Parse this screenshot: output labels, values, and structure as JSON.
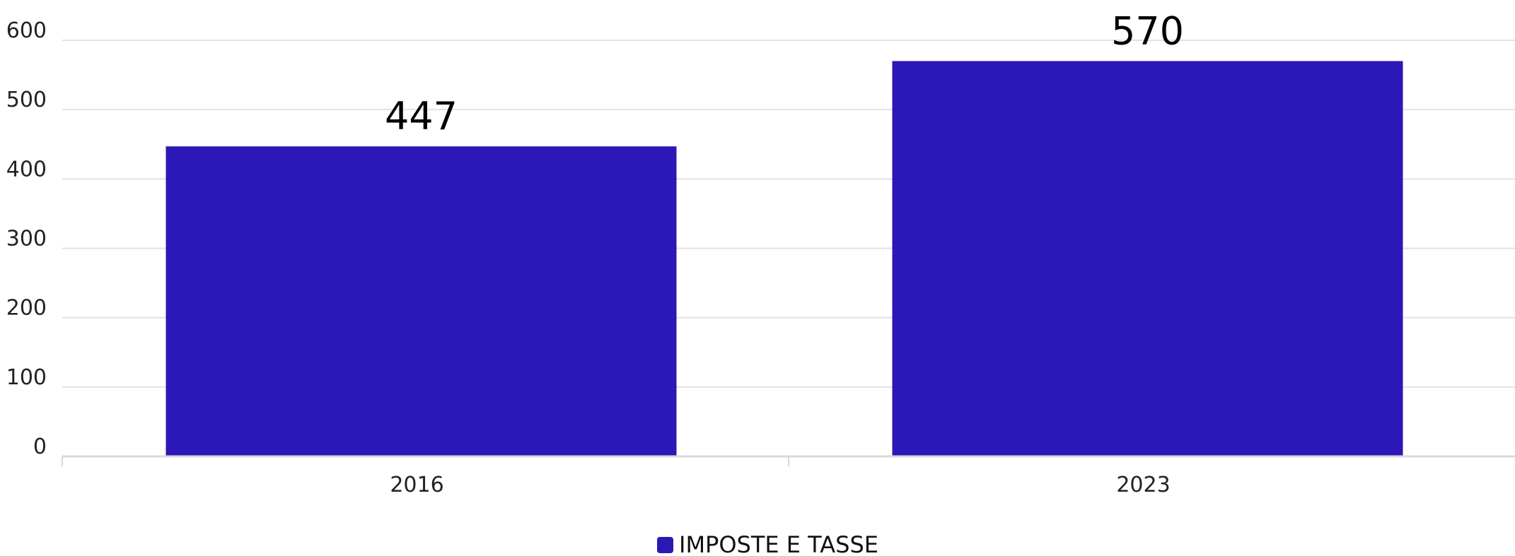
{
  "chart_data": {
    "type": "bar",
    "categories": [
      "2016",
      "2023"
    ],
    "series": [
      {
        "name": "IMPOSTE E TASSE",
        "values": [
          447,
          570
        ],
        "color": "#2c17b7"
      }
    ],
    "data_labels": [
      "447",
      "570"
    ],
    "yticks": [
      0,
      100,
      200,
      300,
      400,
      500,
      600
    ],
    "ylim": [
      0,
      600
    ],
    "title": "",
    "xlabel": "",
    "ylabel": "",
    "grid": true,
    "legend_position": "bottom-center"
  }
}
